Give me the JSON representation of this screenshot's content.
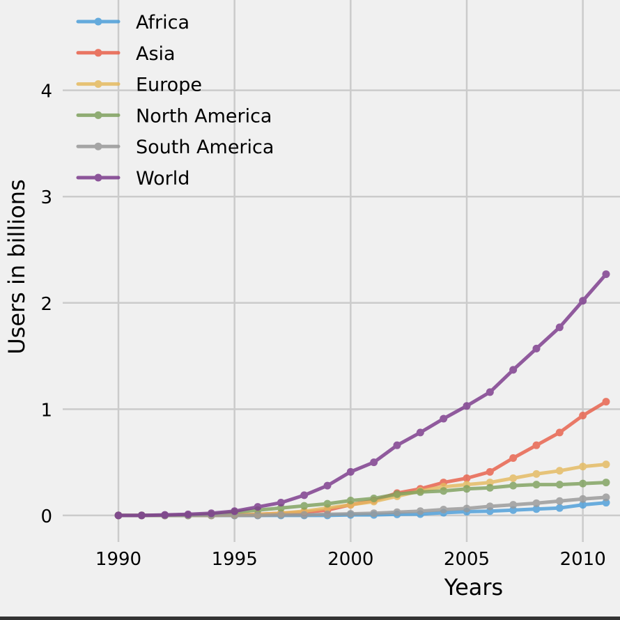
{
  "chart_data": {
    "type": "line",
    "title": "",
    "xlabel": "Years",
    "ylabel": "Users in billions",
    "xlim": [
      1987.6,
      2011.6
    ],
    "ylim": [
      -0.25,
      4.85
    ],
    "xticks": [
      1990,
      1995,
      2000,
      2005,
      2010
    ],
    "xtick_labels": [
      "1990",
      "1995",
      "2000",
      "2005",
      "2010"
    ],
    "yticks": [
      0,
      1,
      2,
      3,
      4
    ],
    "ytick_labels": [
      "0",
      "1",
      "2",
      "3",
      "4"
    ],
    "grid": true,
    "legend_position": "upper-left",
    "x": [
      1990,
      1991,
      1992,
      1993,
      1994,
      1995,
      1996,
      1997,
      1998,
      1999,
      2000,
      2001,
      2002,
      2003,
      2004,
      2005,
      2006,
      2007,
      2008,
      2009,
      2010,
      2011
    ],
    "series": [
      {
        "name": "Africa",
        "color": "#4c9ed9",
        "values": [
          0,
          0,
          0,
          0,
          0,
          0,
          0,
          0,
          0,
          0,
          0.005,
          0.005,
          0.01,
          0.012,
          0.025,
          0.035,
          0.04,
          0.05,
          0.06,
          0.07,
          0.1,
          0.12
        ]
      },
      {
        "name": "Asia",
        "color": "#e8604a",
        "values": [
          0,
          0,
          0,
          0,
          0,
          0.005,
          0.01,
          0.02,
          0.03,
          0.05,
          0.1,
          0.14,
          0.21,
          0.25,
          0.31,
          0.35,
          0.41,
          0.54,
          0.66,
          0.78,
          0.94,
          1.07
        ]
      },
      {
        "name": "Europe",
        "color": "#e5ba5f",
        "values": [
          0,
          0,
          0,
          0,
          0,
          0.005,
          0.01,
          0.02,
          0.04,
          0.07,
          0.1,
          0.13,
          0.18,
          0.23,
          0.27,
          0.29,
          0.31,
          0.35,
          0.39,
          0.42,
          0.46,
          0.48
        ]
      },
      {
        "name": "North America",
        "color": "#7fa15e",
        "values": [
          0,
          0,
          0,
          0,
          0.01,
          0.03,
          0.05,
          0.07,
          0.09,
          0.11,
          0.14,
          0.16,
          0.2,
          0.22,
          0.23,
          0.25,
          0.26,
          0.28,
          0.29,
          0.29,
          0.3,
          0.31
        ]
      },
      {
        "name": "South America",
        "color": "#999999",
        "values": [
          0,
          0,
          0,
          0,
          0,
          0,
          0,
          0.005,
          0.005,
          0.01,
          0.015,
          0.02,
          0.03,
          0.04,
          0.055,
          0.065,
          0.085,
          0.1,
          0.115,
          0.135,
          0.155,
          0.17
        ]
      },
      {
        "name": "World",
        "color": "#7b3a8c",
        "values": [
          0,
          0,
          0.005,
          0.01,
          0.02,
          0.04,
          0.08,
          0.12,
          0.19,
          0.28,
          0.41,
          0.5,
          0.66,
          0.78,
          0.91,
          1.03,
          1.16,
          1.37,
          1.57,
          1.77,
          2.02,
          2.27
        ]
      }
    ]
  }
}
